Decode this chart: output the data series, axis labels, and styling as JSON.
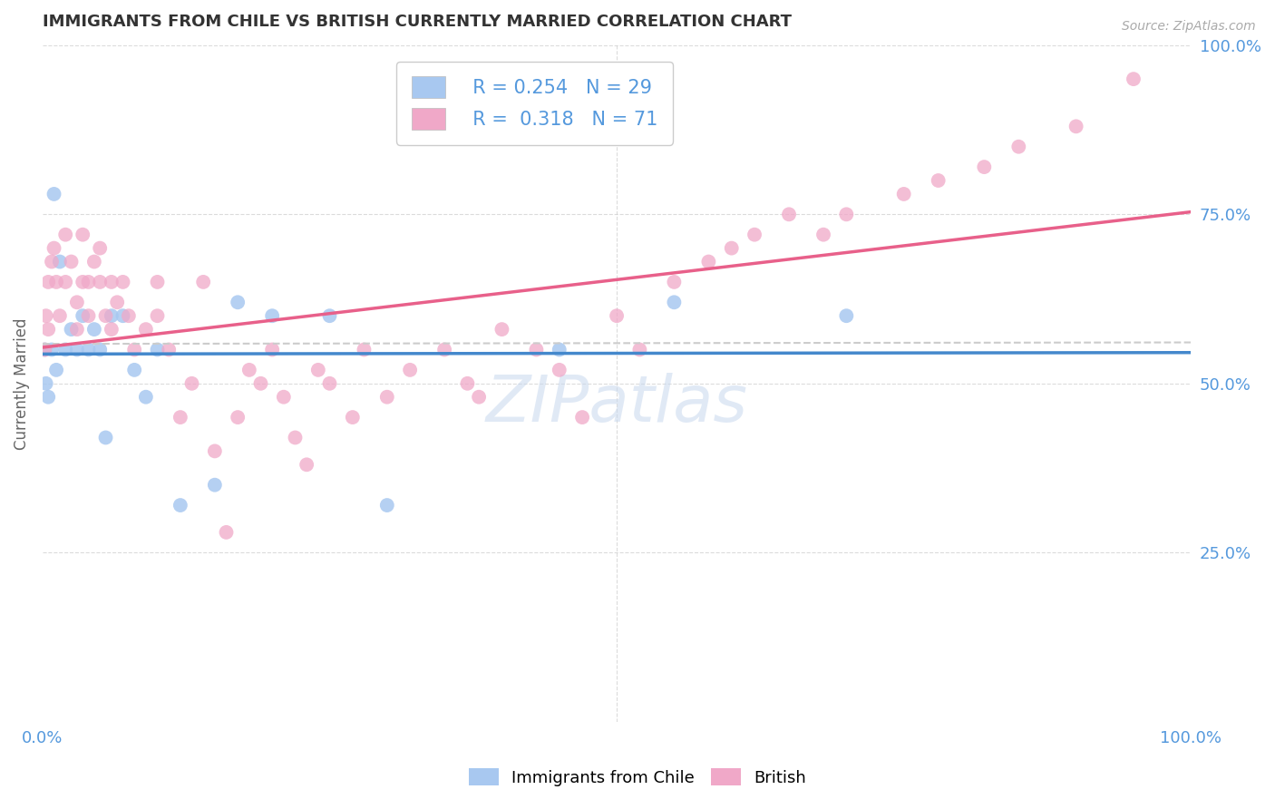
{
  "title": "IMMIGRANTS FROM CHILE VS BRITISH CURRENTLY MARRIED CORRELATION CHART",
  "source_text": "Source: ZipAtlas.com",
  "ylabel": "Currently Married",
  "legend_label1": "Immigrants from Chile",
  "legend_label2": "British",
  "R1": 0.254,
  "N1": 29,
  "R2": 0.318,
  "N2": 71,
  "color1": "#a8c8f0",
  "color2": "#f0a8c8",
  "trendline1_color": "#4488cc",
  "trendline2_color": "#e8608a",
  "watermark_color": "#c8d8ee",
  "grid_color": "#cccccc",
  "background_color": "#ffffff",
  "title_color": "#333333",
  "source_color": "#aaaaaa",
  "right_axis_color": "#5599dd",
  "chile_x": [
    0.2,
    0.3,
    0.5,
    0.8,
    1.0,
    1.2,
    1.5,
    2.0,
    2.5,
    3.0,
    3.5,
    4.0,
    4.5,
    5.0,
    5.5,
    6.0,
    7.0,
    8.0,
    9.0,
    10.0,
    12.0,
    15.0,
    17.0,
    20.0,
    25.0,
    30.0,
    45.0,
    55.0,
    70.0
  ],
  "chile_y": [
    55.0,
    50.0,
    48.0,
    55.0,
    78.0,
    52.0,
    68.0,
    55.0,
    58.0,
    55.0,
    60.0,
    55.0,
    58.0,
    55.0,
    42.0,
    60.0,
    60.0,
    52.0,
    48.0,
    55.0,
    32.0,
    35.0,
    62.0,
    60.0,
    60.0,
    32.0,
    55.0,
    62.0,
    60.0
  ],
  "british_x": [
    0.2,
    0.3,
    0.5,
    0.5,
    0.8,
    1.0,
    1.2,
    1.5,
    2.0,
    2.0,
    2.5,
    3.0,
    3.0,
    3.5,
    3.5,
    4.0,
    4.0,
    4.5,
    5.0,
    5.0,
    5.5,
    6.0,
    6.0,
    6.5,
    7.0,
    7.5,
    8.0,
    9.0,
    10.0,
    10.0,
    11.0,
    12.0,
    13.0,
    14.0,
    15.0,
    16.0,
    17.0,
    18.0,
    19.0,
    20.0,
    21.0,
    22.0,
    23.0,
    24.0,
    25.0,
    27.0,
    28.0,
    30.0,
    32.0,
    35.0,
    37.0,
    38.0,
    40.0,
    43.0,
    45.0,
    47.0,
    50.0,
    52.0,
    55.0,
    58.0,
    60.0,
    62.0,
    65.0,
    68.0,
    70.0,
    75.0,
    78.0,
    82.0,
    85.0,
    90.0,
    95.0
  ],
  "british_y": [
    55.0,
    60.0,
    58.0,
    65.0,
    68.0,
    70.0,
    65.0,
    60.0,
    65.0,
    72.0,
    68.0,
    62.0,
    58.0,
    65.0,
    72.0,
    60.0,
    65.0,
    68.0,
    70.0,
    65.0,
    60.0,
    65.0,
    58.0,
    62.0,
    65.0,
    60.0,
    55.0,
    58.0,
    65.0,
    60.0,
    55.0,
    45.0,
    50.0,
    65.0,
    40.0,
    28.0,
    45.0,
    52.0,
    50.0,
    55.0,
    48.0,
    42.0,
    38.0,
    52.0,
    50.0,
    45.0,
    55.0,
    48.0,
    52.0,
    55.0,
    50.0,
    48.0,
    58.0,
    55.0,
    52.0,
    45.0,
    60.0,
    55.0,
    65.0,
    68.0,
    70.0,
    72.0,
    75.0,
    72.0,
    75.0,
    78.0,
    80.0,
    82.0,
    85.0,
    88.0,
    95.0
  ],
  "xlim": [
    0,
    100
  ],
  "ylim": [
    0,
    100
  ]
}
